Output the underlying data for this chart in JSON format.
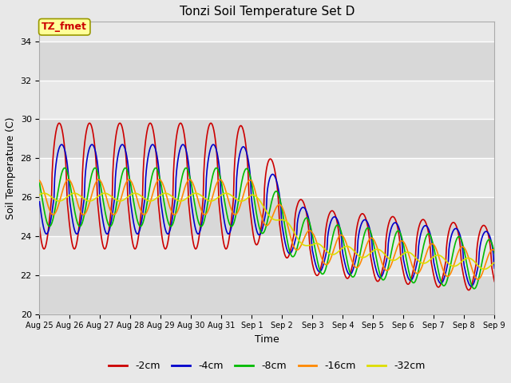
{
  "title": "Tonzi Soil Temperature Set D",
  "xlabel": "Time",
  "ylabel": "Soil Temperature (C)",
  "ylim": [
    20,
    35
  ],
  "yticks": [
    20,
    22,
    24,
    26,
    28,
    30,
    32,
    34
  ],
  "fig_bg": "#e8e8e8",
  "plot_bg": "#e8e8e8",
  "grid_color": "white",
  "series": [
    {
      "label": "-2cm",
      "color": "#cc0000",
      "lw": 1.2
    },
    {
      "label": "-4cm",
      "color": "#0000cc",
      "lw": 1.2
    },
    {
      "label": "-8cm",
      "color": "#00bb00",
      "lw": 1.2
    },
    {
      "label": "-16cm",
      "color": "#ff8800",
      "lw": 1.2
    },
    {
      "label": "-32cm",
      "color": "#dddd00",
      "lw": 1.2
    }
  ],
  "annotation": {
    "text": "TZ_fmet",
    "fontsize": 9,
    "color": "#cc0000",
    "bg": "#ffff99",
    "border_color": "#999900"
  },
  "x_tick_labels": [
    "Aug 25",
    "Aug 26",
    "Aug 27",
    "Aug 28",
    "Aug 29",
    "Aug 30",
    "Aug 31",
    "Sep 1",
    "Sep 2",
    "Sep 3",
    "Sep 4",
    "Sep 5",
    "Sep 6",
    "Sep 7",
    "Sep 8",
    "Sep 9"
  ],
  "figsize": [
    6.4,
    4.8
  ],
  "dpi": 100
}
